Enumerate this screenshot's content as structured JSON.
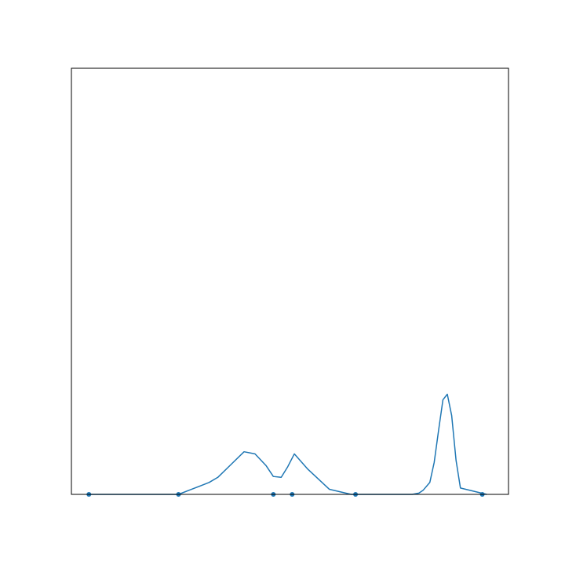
{
  "chart_data": {
    "type": "line",
    "title": "",
    "xlabel": "",
    "ylabel": "",
    "grid": false,
    "xlim": [
      0,
      100
    ],
    "ylim": [
      0,
      1
    ],
    "series": [
      {
        "color": "#1f77b4",
        "x": [
          4,
          10,
          17,
          21,
          24.5,
          27,
          29.5,
          31.5,
          33.5,
          36.5,
          39.5,
          42,
          44.5,
          46.2,
          48,
          49.5,
          51,
          54,
          59,
          64,
          70,
          76,
          78,
          79.5,
          80.5,
          82,
          83,
          84,
          85,
          86,
          87,
          88,
          89,
          95
        ],
        "y": [
          0,
          0,
          0,
          0,
          0,
          0.01,
          0.02,
          0.028,
          0.04,
          0.07,
          0.1,
          0.095,
          0.068,
          0.042,
          0.04,
          0.065,
          0.095,
          0.06,
          0.012,
          0,
          0,
          0,
          0,
          0.003,
          0.01,
          0.028,
          0.075,
          0.15,
          0.222,
          0.235,
          0.185,
          0.08,
          0.015,
          0
        ]
      }
    ],
    "rug": [
      4,
      24.5,
      46.2,
      50.5,
      65,
      94
    ],
    "marker_color": "#1f77b4"
  }
}
